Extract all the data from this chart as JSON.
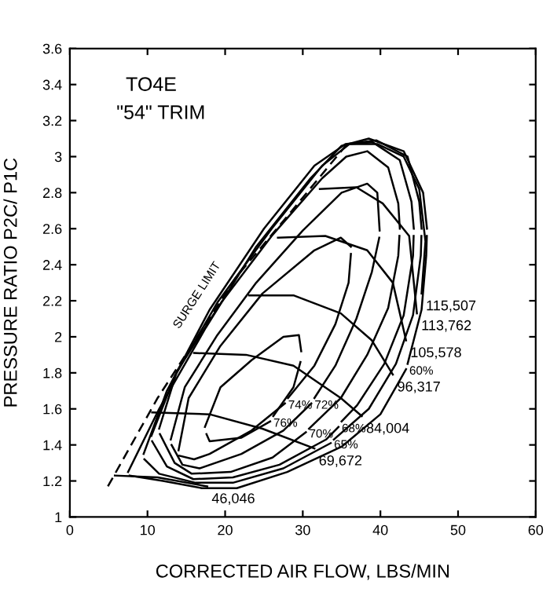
{
  "chart_data": {
    "type": "line",
    "title": "TO4E",
    "subtitle": "\"54\" TRIM",
    "xlabel": "CORRECTED AIR FLOW, LBS/MIN",
    "ylabel": "PRESSURE RATIO P2C/ P1C",
    "xlim": [
      0,
      60
    ],
    "xticks": [
      0,
      10,
      20,
      30,
      40,
      50,
      60
    ],
    "ylim": [
      1,
      3.6
    ],
    "yticks": [
      1,
      1.2,
      1.4,
      1.6,
      1.8,
      2,
      2.2,
      2.4,
      2.6,
      2.8,
      3,
      3.2,
      3.4,
      3.6
    ],
    "grid": false,
    "legend": false,
    "marker": "none",
    "series": [
      {
        "name": "SURGE LIMIT",
        "color": "#000000",
        "line_style": "dashed",
        "x": [
          4.9,
          11.3,
          21.4,
          28.8,
          35.9
        ],
        "values": [
          1.17,
          1.66,
          2.33,
          2.71,
          3.08
        ]
      },
      {
        "name": "46,046",
        "color": "#000000",
        "x": [
          5.8,
          11.3,
          17.7
        ],
        "values": [
          1.23,
          1.22,
          1.17
        ]
      },
      {
        "name": "69,672",
        "color": "#000000",
        "x": [
          10.6,
          18,
          24.8,
          31.5
        ],
        "values": [
          1.58,
          1.57,
          1.49,
          1.38
        ]
      },
      {
        "name": "84,004",
        "color": "#000000",
        "x": [
          16,
          22.7,
          28.8,
          34.9,
          37.6
        ],
        "values": [
          1.91,
          1.9,
          1.84,
          1.66,
          1.56
        ]
      },
      {
        "name": "96,317",
        "color": "#000000",
        "x": [
          23.1,
          28.8,
          34.9,
          38.9,
          41.6
        ],
        "values": [
          2.23,
          2.23,
          2.13,
          1.98,
          1.79
        ]
      },
      {
        "name": "105,578",
        "color": "#000000",
        "x": [
          26.8,
          32.9,
          38.3,
          41.6,
          43.3
        ],
        "values": [
          2.55,
          2.56,
          2.48,
          2.3,
          1.98
        ]
      },
      {
        "name": "113,762",
        "color": "#000000",
        "x": [
          32.2,
          36.9,
          40.3,
          43.7,
          44.7
        ],
        "values": [
          2.82,
          2.83,
          2.74,
          2.56,
          2.13
        ]
      },
      {
        "name": "115,507",
        "color": "#000000",
        "x": [
          36.2,
          39.6,
          43,
          45,
          45.8,
          45.3
        ],
        "values": [
          3.07,
          3.07,
          3.0,
          2.82,
          2.53,
          2.24
        ]
      },
      {
        "name": "76%",
        "color": "#000000",
        "x": [
          17.6,
          18,
          22.1,
          25.8
        ],
        "values": [
          1.46,
          1.42,
          1.44,
          1.53
        ]
      },
      {
        "color": "#000000",
        "x": [
          17.4,
          19.4,
          23.4,
          27.5,
          29.5,
          29.8
        ],
        "values": [
          1.5,
          1.72,
          1.87,
          2.0,
          2.01,
          1.92
        ]
      },
      {
        "color": "#000000",
        "x": [
          29.7,
          28.8,
          26.2
        ],
        "values": [
          1.86,
          1.72,
          1.56
        ]
      },
      {
        "name": "74%",
        "color": "#000000",
        "x": [
          14.1,
          16,
          18,
          23.4,
          27.7
        ],
        "values": [
          1.34,
          1.32,
          1.35,
          1.48,
          1.63
        ]
      },
      {
        "color": "#000000",
        "x": [
          14,
          15.3,
          19.4,
          24.8,
          31.5,
          34.9,
          36.2
        ],
        "values": [
          1.37,
          1.66,
          1.95,
          2.24,
          2.48,
          2.55,
          2.5
        ]
      },
      {
        "color": "#000000",
        "x": [
          36.2,
          35.9,
          34.2,
          31.5,
          28.1
        ],
        "values": [
          2.46,
          2.3,
          2.07,
          1.84,
          1.66
        ]
      },
      {
        "name": "72%",
        "color": "#000000",
        "x": [
          13.1,
          14.5,
          16.7,
          22.1,
          27.5,
          31.1
        ],
        "values": [
          1.4,
          1.29,
          1.27,
          1.35,
          1.48,
          1.63
        ]
      },
      {
        "color": "#000000",
        "x": [
          13,
          14.8,
          19,
          24,
          30,
          35,
          38.3,
          39.6,
          39.9
        ],
        "values": [
          1.43,
          1.72,
          2.01,
          2.3,
          2.59,
          2.8,
          2.85,
          2.8,
          2.59
        ]
      },
      {
        "color": "#000000",
        "x": [
          39.85,
          38.9,
          36.9,
          34.2,
          31.5
        ],
        "values": [
          2.55,
          2.36,
          2.1,
          1.84,
          1.66
        ]
      },
      {
        "name": "70%",
        "color": "#000000",
        "x": [
          11.6,
          13.5,
          15.7,
          20.7,
          26.1,
          30.4
        ],
        "values": [
          1.46,
          1.3,
          1.24,
          1.25,
          1.33,
          1.47
        ]
      },
      {
        "color": "#000000",
        "x": [
          11.5,
          13.8,
          19.5,
          26,
          32.5,
          35.6,
          38.3,
          41,
          42.3,
          42.5
        ],
        "values": [
          1.49,
          1.81,
          2.19,
          2.56,
          2.88,
          3.0,
          3.03,
          2.94,
          2.74,
          2.6
        ]
      },
      {
        "color": "#000000",
        "x": [
          42.45,
          42.3,
          41,
          38.3,
          34.9,
          30.8
        ],
        "values": [
          2.56,
          2.45,
          2.16,
          1.9,
          1.66,
          1.49
        ]
      },
      {
        "name": "68%",
        "color": "#000000",
        "x": [
          10.6,
          12.5,
          15.9,
          21,
          27,
          33,
          34.6
        ],
        "values": [
          1.42,
          1.28,
          1.21,
          1.22,
          1.29,
          1.43,
          1.5
        ]
      },
      {
        "color": "#000000",
        "x": [
          10.5,
          13.5,
          19,
          26,
          32.5,
          36,
          39,
          42.5,
          44,
          44.3
        ],
        "values": [
          1.45,
          1.78,
          2.19,
          2.6,
          2.95,
          3.07,
          3.08,
          2.98,
          2.75,
          2.6
        ]
      },
      {
        "color": "#000000",
        "x": [
          44.28,
          44.2,
          43,
          40.5,
          37,
          35
        ],
        "values": [
          2.56,
          2.45,
          2.12,
          1.85,
          1.62,
          1.53
        ]
      },
      {
        "name": "65%",
        "color": "#000000",
        "x": [
          9.6,
          11.5,
          16.2,
          21,
          27.5,
          33.6
        ],
        "values": [
          1.32,
          1.24,
          1.19,
          1.19,
          1.27,
          1.41
        ]
      },
      {
        "color": "#000000",
        "x": [
          9.5,
          12.5,
          18,
          25,
          31.5,
          35.5,
          39.5,
          43.5,
          45,
          45.3
        ],
        "values": [
          1.35,
          1.7,
          2.15,
          2.6,
          2.95,
          3.07,
          3.09,
          3.0,
          2.75,
          2.6
        ]
      },
      {
        "color": "#000000",
        "x": [
          45.28,
          45.2,
          44.2,
          42,
          38.5,
          34
        ],
        "values": [
          2.56,
          2.45,
          2.12,
          1.85,
          1.6,
          1.43
        ]
      },
      {
        "name": "60%",
        "color": "#000000",
        "x": [
          7.7,
          12,
          17,
          21.5,
          28,
          35,
          40,
          43.3
        ],
        "values": [
          1.23,
          1.2,
          1.16,
          1.16,
          1.25,
          1.39,
          1.57,
          1.82
        ]
      },
      {
        "color": "#000000",
        "x": [
          7.5,
          11.5,
          17.5,
          24,
          31,
          35,
          38.5,
          43,
          45.5,
          46
        ],
        "values": [
          1.25,
          1.6,
          2.05,
          2.5,
          2.88,
          3.06,
          3.1,
          3.03,
          2.8,
          2.6
        ]
      },
      {
        "color": "#000000",
        "x": [
          45.98,
          45.9,
          45.3,
          43.5
        ],
        "values": [
          2.56,
          2.45,
          2.15,
          1.85
        ]
      }
    ]
  }
}
